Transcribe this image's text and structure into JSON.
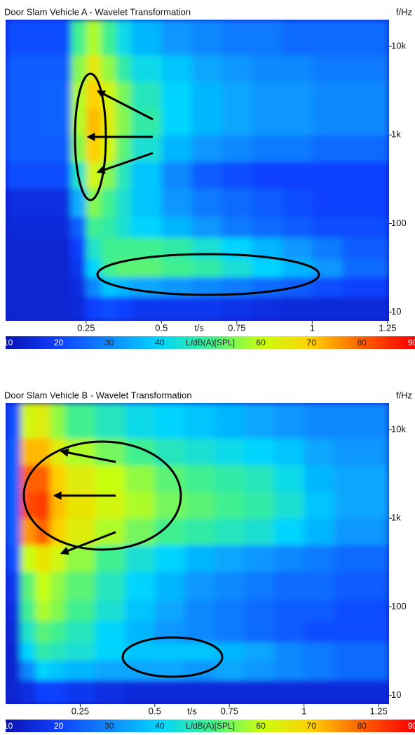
{
  "chart_data": [
    {
      "type": "heatmap",
      "title": "Door Slam Vehicle A - Wavelet Transformation",
      "y_label": "f/Hz",
      "x_label": "t/s",
      "yscale": "log",
      "xlim": [
        -0.017,
        1.255
      ],
      "ylim": [
        8,
        20000
      ],
      "xticks": [
        0.25,
        0.5,
        0.75,
        1,
        1.25
      ],
      "yticks": [
        {
          "value": 10000,
          "label": "10k"
        },
        {
          "value": 1000,
          "label": "1k"
        },
        100,
        10
      ],
      "xbins": [
        -0.017,
        0.1,
        0.2,
        0.25,
        0.3,
        0.35,
        0.4,
        0.5,
        0.6,
        0.7,
        0.8,
        0.9,
        1.0,
        1.1,
        1.255
      ],
      "ybins": [
        8,
        15,
        25,
        40,
        70,
        120,
        250,
        500,
        1000,
        2000,
        4000,
        8000,
        20000
      ],
      "values": [
        [
          14,
          14,
          15,
          20,
          22,
          20,
          18,
          18,
          18,
          17,
          16,
          15,
          15,
          15
        ],
        [
          14,
          14,
          16,
          30,
          38,
          36,
          34,
          32,
          30,
          28,
          26,
          24,
          22,
          20
        ],
        [
          14,
          14,
          18,
          40,
          50,
          52,
          52,
          50,
          48,
          44,
          40,
          36,
          32,
          26
        ],
        [
          14,
          14,
          20,
          45,
          50,
          50,
          50,
          48,
          44,
          40,
          36,
          32,
          28,
          24
        ],
        [
          15,
          15,
          25,
          50,
          48,
          44,
          40,
          36,
          32,
          28,
          26,
          24,
          22,
          22
        ],
        [
          16,
          16,
          35,
          55,
          50,
          44,
          38,
          32,
          28,
          26,
          24,
          22,
          20,
          20
        ],
        [
          22,
          22,
          45,
          62,
          55,
          46,
          38,
          30,
          24,
          22,
          20,
          20,
          20,
          20
        ],
        [
          24,
          24,
          55,
          70,
          62,
          52,
          44,
          36,
          32,
          30,
          28,
          28,
          26,
          26
        ],
        [
          24,
          25,
          58,
          72,
          64,
          55,
          48,
          40,
          36,
          34,
          32,
          32,
          30,
          30
        ],
        [
          24,
          25,
          58,
          70,
          62,
          54,
          46,
          40,
          36,
          34,
          32,
          32,
          30,
          30
        ],
        [
          24,
          24,
          55,
          65,
          56,
          48,
          42,
          38,
          34,
          32,
          30,
          30,
          28,
          28
        ],
        [
          22,
          22,
          50,
          58,
          50,
          42,
          36,
          32,
          30,
          28,
          28,
          26,
          26,
          26
        ]
      ],
      "clim": [
        9.5,
        90.5
      ],
      "cticks": [
        10,
        20,
        30,
        40,
        {
          "value": 50,
          "label": "L/dB(A)[SPL]"
        },
        60,
        70,
        80,
        90
      ],
      "colorscale": [
        {
          "value": 10,
          "color": "#0a14b4"
        },
        {
          "value": 20,
          "color": "#1040ff"
        },
        {
          "value": 30,
          "color": "#1088ff"
        },
        {
          "value": 40,
          "color": "#00d4ff"
        },
        {
          "value": 50,
          "color": "#40f090"
        },
        {
          "value": 60,
          "color": "#c8ff10"
        },
        {
          "value": 70,
          "color": "#ffd000"
        },
        {
          "value": 80,
          "color": "#ff6000"
        },
        {
          "value": 90,
          "color": "#ff0000"
        }
      ]
    },
    {
      "type": "heatmap",
      "title": "Door Slam Vehicle B - Wavelet Transformation",
      "y_label": "f/Hz",
      "x_label": "t/s",
      "yscale": "log",
      "xlim": [
        0,
        1.285
      ],
      "ylim": [
        8,
        20000
      ],
      "xticks": [
        0.25,
        0.5,
        0.75,
        1,
        1.25
      ],
      "yticks": [
        {
          "value": 10000,
          "label": "10k"
        },
        {
          "value": 1000,
          "label": "1k"
        },
        100,
        10
      ],
      "xbins": [
        0,
        0.05,
        0.1,
        0.15,
        0.2,
        0.3,
        0.4,
        0.5,
        0.6,
        0.7,
        0.8,
        0.9,
        1.0,
        1.1,
        1.285
      ],
      "ybins": [
        8,
        15,
        25,
        40,
        70,
        120,
        250,
        500,
        1000,
        2000,
        4000,
        8000,
        20000
      ],
      "values": [
        [
          14,
          16,
          20,
          20,
          18,
          16,
          15,
          15,
          15,
          15,
          15,
          15,
          15,
          15
        ],
        [
          14,
          30,
          40,
          38,
          36,
          34,
          34,
          34,
          32,
          34,
          32,
          30,
          28,
          26
        ],
        [
          14,
          40,
          48,
          46,
          44,
          40,
          38,
          38,
          38,
          36,
          34,
          30,
          28,
          26
        ],
        [
          15,
          45,
          52,
          50,
          46,
          40,
          36,
          32,
          30,
          28,
          26,
          24,
          22,
          22
        ],
        [
          16,
          50,
          58,
          55,
          50,
          44,
          38,
          34,
          30,
          28,
          26,
          24,
          24,
          22
        ],
        [
          18,
          52,
          60,
          56,
          52,
          46,
          40,
          36,
          32,
          30,
          28,
          26,
          26,
          24
        ],
        [
          22,
          60,
          66,
          62,
          56,
          50,
          44,
          40,
          36,
          34,
          32,
          30,
          28,
          26
        ],
        [
          24,
          75,
          80,
          70,
          64,
          58,
          54,
          50,
          48,
          46,
          44,
          40,
          36,
          32
        ],
        [
          24,
          82,
          84,
          72,
          66,
          62,
          58,
          54,
          52,
          50,
          48,
          44,
          38,
          34
        ],
        [
          24,
          80,
          80,
          70,
          64,
          60,
          56,
          52,
          50,
          48,
          46,
          42,
          36,
          34
        ],
        [
          24,
          72,
          72,
          64,
          58,
          54,
          50,
          46,
          44,
          42,
          40,
          38,
          34,
          32
        ],
        [
          22,
          62,
          64,
          56,
          50,
          46,
          42,
          40,
          38,
          36,
          34,
          32,
          30,
          30
        ]
      ],
      "clim": [
        9.5,
        90.5
      ],
      "cticks": [
        10,
        20,
        30,
        40,
        {
          "value": 50,
          "label": "L/dB(A)[SPL]"
        },
        60,
        70,
        80,
        90
      ],
      "colorscale": [
        {
          "value": 10,
          "color": "#0a14b4"
        },
        {
          "value": 20,
          "color": "#1040ff"
        },
        {
          "value": 30,
          "color": "#1088ff"
        },
        {
          "value": 40,
          "color": "#00d4ff"
        },
        {
          "value": 50,
          "color": "#40f090"
        },
        {
          "value": 60,
          "color": "#c8ff10"
        },
        {
          "value": 70,
          "color": "#ffd000"
        },
        {
          "value": 80,
          "color": "#ff6000"
        },
        {
          "value": 90,
          "color": "#ff0000"
        }
      ]
    }
  ]
}
